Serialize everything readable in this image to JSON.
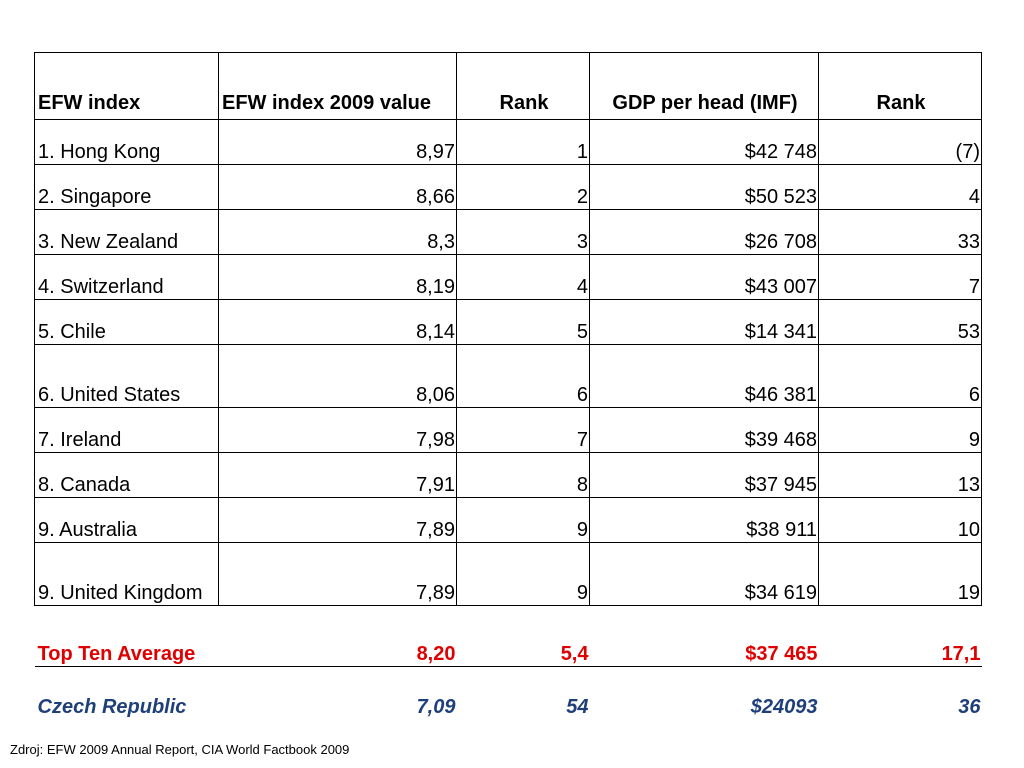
{
  "table": {
    "headers": [
      "EFW index",
      "EFW index 2009 value",
      "Rank",
      "GDP per head (IMF)",
      "Rank"
    ],
    "rows": [
      [
        "1. Hong Kong",
        "8,97",
        "1",
        "$42 748",
        "(7)"
      ],
      [
        "2. Singapore",
        "8,66",
        "2",
        "$50 523",
        "4"
      ],
      [
        "3. New Zealand",
        "8,3",
        "3",
        "$26 708",
        "33"
      ],
      [
        "4. Switzerland",
        "8,19",
        "4",
        "$43 007",
        "7"
      ],
      [
        "5. Chile",
        "8,14",
        "5",
        "$14 341",
        "53"
      ],
      [
        "6. United States",
        "8,06",
        "6",
        "$46 381",
        "6"
      ],
      [
        "7. Ireland",
        "7,98",
        "7",
        "$39 468",
        "9"
      ],
      [
        "8. Canada",
        "7,91",
        "8",
        "$37 945",
        "13"
      ],
      [
        "9. Australia",
        "7,89",
        "9",
        "$38 911",
        "10"
      ],
      [
        "9. United Kingdom",
        "7,89",
        "9",
        "$34 619",
        "19"
      ]
    ],
    "average": [
      "Top Ten Average",
      "8,20",
      "5,4",
      "$37 465",
      "17,1"
    ],
    "czech": [
      "Czech Republic",
      "7,09",
      "54",
      "$24093",
      "36"
    ]
  },
  "colors": {
    "average": "#e00000",
    "czech": "#1f3f7a"
  },
  "source": "Zdroj: EFW 2009 Annual Report, CIA World Factbook 2009"
}
